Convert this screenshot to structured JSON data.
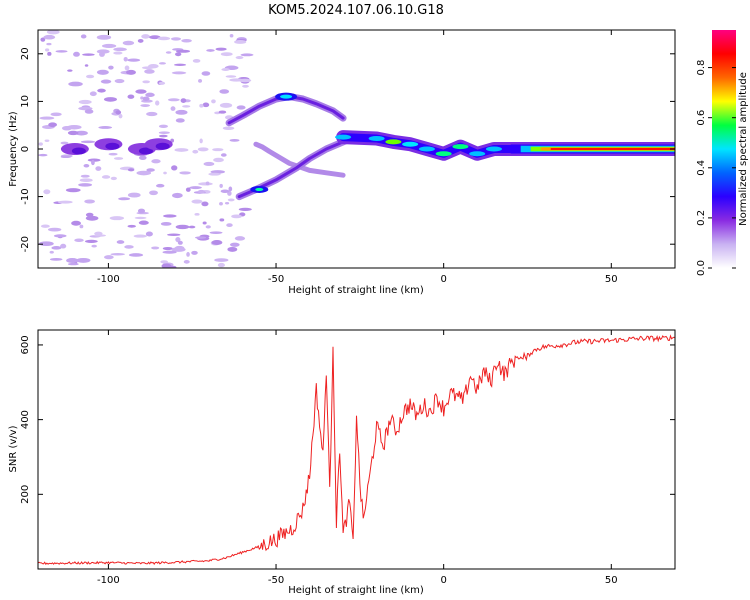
{
  "title": "KOM5.2024.107.06.10.G18",
  "chart_data": [
    {
      "type": "heatmap",
      "xlabel": "Height of straight line (km)",
      "ylabel": "Frequency (Hz)",
      "xlim": [
        -121,
        69
      ],
      "ylim": [
        -25,
        25
      ],
      "xticks": [
        -100,
        -50,
        0,
        50
      ],
      "yticks": [
        -20,
        -10,
        0,
        10,
        20
      ],
      "colorbar": {
        "label": "Normalized spectral amplitude",
        "range": [
          0,
          0.95
        ],
        "ticks": [
          0.0,
          0.2,
          0.4,
          0.6,
          0.8
        ],
        "colormap": [
          "#ffffff",
          "#c9b2f2",
          "#8a2be2",
          "#2b00ff",
          "#0064ff",
          "#00e5ff",
          "#00ff40",
          "#ffff00",
          "#ff6600",
          "#ff0000",
          "#ff0080"
        ]
      },
      "track": {
        "upper_branch": [
          [
            -56,
            1
          ],
          [
            -54,
            0.4
          ],
          [
            -52,
            -0.5
          ],
          [
            -46,
            -3
          ],
          [
            -40,
            -4.5
          ],
          [
            -35,
            -5
          ],
          [
            -30,
            -5.5
          ]
        ],
        "lower_branch": [
          [
            -61,
            -10
          ],
          [
            -56,
            -8.5
          ],
          [
            -50,
            -6.5
          ],
          [
            -44,
            -4
          ],
          [
            -40,
            -2
          ],
          [
            -35,
            0
          ],
          [
            -30,
            1.5
          ],
          [
            -25,
            3
          ]
        ],
        "bright_segment": [
          [
            -64,
            5.5
          ],
          [
            -60,
            7
          ],
          [
            -55,
            9
          ],
          [
            -50,
            10.5
          ],
          [
            -46,
            11
          ],
          [
            -42,
            10.5
          ],
          [
            -38,
            9.5
          ],
          [
            -33,
            8
          ],
          [
            -30,
            6.5
          ]
        ],
        "main_trace": [
          [
            -30,
            2.5
          ],
          [
            -20,
            2.2
          ],
          [
            -15,
            1.5
          ],
          [
            -10,
            1
          ],
          [
            -5,
            0
          ],
          [
            0,
            -1
          ],
          [
            5,
            0.5
          ],
          [
            10,
            -1
          ],
          [
            15,
            0
          ],
          [
            20,
            0
          ],
          [
            30,
            0
          ],
          [
            40,
            0
          ],
          [
            50,
            0
          ],
          [
            60,
            0
          ],
          [
            69,
            0
          ]
        ],
        "cluster": [
          [
            -110,
            0
          ],
          [
            -100,
            1
          ],
          [
            -90,
            0
          ],
          [
            -85,
            1
          ]
        ]
      }
    },
    {
      "type": "line",
      "xlabel": "Height of straight line (km)",
      "ylabel": "SNR (v/v)",
      "xlim": [
        -121,
        69
      ],
      "ylim": [
        0,
        640
      ],
      "xticks": [
        -100,
        -50,
        0,
        50
      ],
      "yticks": [
        200,
        400,
        600
      ],
      "color": "#ee2222",
      "series": [
        {
          "x": [
            -121,
            -110,
            -100,
            -90,
            -80,
            -70,
            -65,
            -60,
            -55,
            -50,
            -45,
            -42,
            -40,
            -38,
            -36,
            -35,
            -34,
            -33,
            -32,
            -31,
            -30,
            -28,
            -27,
            -26,
            -25,
            -24,
            -22,
            -20,
            -18,
            -16,
            -14,
            -12,
            -10,
            -8,
            -6,
            -4,
            -2,
            0,
            2,
            4,
            6,
            8,
            10,
            12,
            14,
            16,
            18,
            20,
            22,
            24,
            26,
            28,
            30,
            35,
            40,
            45,
            50,
            55,
            60,
            65,
            69
          ],
          "values": [
            15,
            16,
            17,
            15,
            18,
            22,
            30,
            45,
            60,
            80,
            110,
            160,
            250,
            480,
            300,
            540,
            200,
            600,
            120,
            330,
            90,
            180,
            60,
            420,
            230,
            130,
            250,
            380,
            330,
            400,
            370,
            420,
            440,
            410,
            440,
            420,
            460,
            430,
            470,
            460,
            450,
            520,
            480,
            530,
            500,
            560,
            520,
            550,
            570,
            560,
            580,
            590,
            595,
            600,
            608,
            610,
            612,
            615,
            618,
            617,
            620
          ]
        }
      ]
    }
  ]
}
